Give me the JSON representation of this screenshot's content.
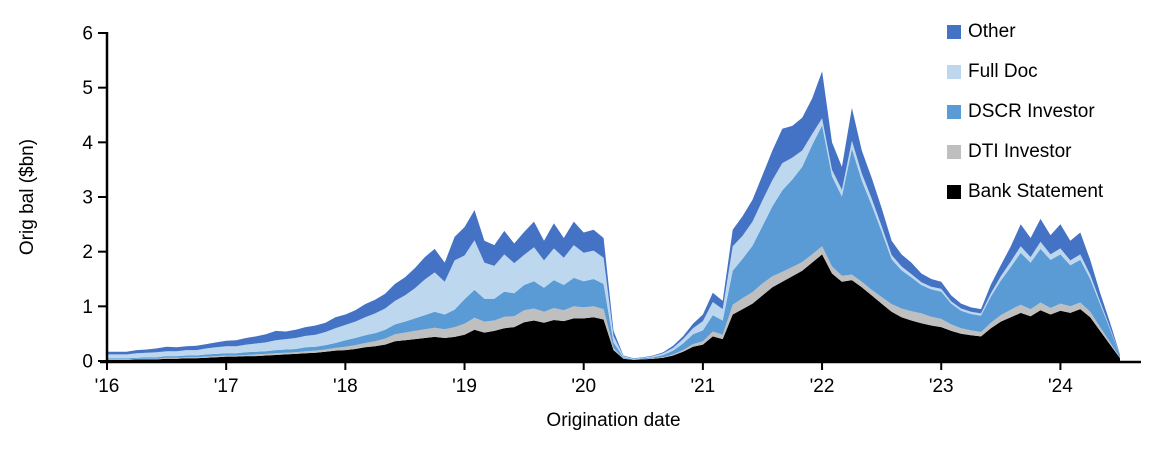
{
  "axes": {
    "y_label": "Orig bal ($bn)",
    "x_label": "Origination date"
  },
  "legend": {
    "items": [
      {
        "label": "Other",
        "color": "#4472C4"
      },
      {
        "label": "Full Doc",
        "color": "#BDD7EE"
      },
      {
        "label": "DSCR Investor",
        "color": "#5B9BD5"
      },
      {
        "label": "DTI Investor",
        "color": "#BFBFBF"
      },
      {
        "label": "Bank Statement",
        "color": "#000000"
      }
    ]
  },
  "chart_data": {
    "type": "area",
    "stacked": true,
    "title": "",
    "xlabel": "Origination date",
    "ylabel": "Orig bal ($bn)",
    "ylim": [
      0,
      6
    ],
    "y_ticks": [
      0,
      1,
      2,
      3,
      4,
      5,
      6
    ],
    "x_unit": "month",
    "x_start": "2016-01",
    "x_end": "2024-07",
    "x_tick_labels": [
      "'16",
      "'17",
      "'18",
      "'19",
      "'20",
      "'21",
      "'22",
      "'23",
      "'24"
    ],
    "x_tick_indices": [
      0,
      12,
      24,
      36,
      48,
      60,
      72,
      84,
      96
    ],
    "grid": false,
    "legend_position": "top-right",
    "series": [
      {
        "name": "Bank Statement",
        "color": "#000000",
        "values": [
          0.02,
          0.02,
          0.02,
          0.03,
          0.03,
          0.03,
          0.04,
          0.04,
          0.05,
          0.05,
          0.06,
          0.07,
          0.08,
          0.08,
          0.09,
          0.09,
          0.1,
          0.11,
          0.12,
          0.13,
          0.14,
          0.15,
          0.17,
          0.19,
          0.2,
          0.22,
          0.25,
          0.27,
          0.3,
          0.36,
          0.38,
          0.4,
          0.42,
          0.44,
          0.42,
          0.44,
          0.48,
          0.57,
          0.52,
          0.55,
          0.6,
          0.62,
          0.71,
          0.74,
          0.7,
          0.75,
          0.73,
          0.78,
          0.78,
          0.8,
          0.76,
          0.2,
          0.04,
          0.02,
          0.03,
          0.04,
          0.06,
          0.1,
          0.17,
          0.26,
          0.3,
          0.45,
          0.4,
          0.85,
          0.95,
          1.05,
          1.2,
          1.35,
          1.45,
          1.55,
          1.65,
          1.8,
          1.95,
          1.6,
          1.45,
          1.48,
          1.35,
          1.2,
          1.05,
          0.9,
          0.8,
          0.74,
          0.69,
          0.65,
          0.62,
          0.55,
          0.5,
          0.47,
          0.45,
          0.6,
          0.72,
          0.8,
          0.88,
          0.82,
          0.93,
          0.85,
          0.92,
          0.88,
          0.95,
          0.8,
          0.55,
          0.3,
          0.05
        ]
      },
      {
        "name": "DTI Investor",
        "color": "#BFBFBF",
        "values": [
          0.01,
          0.01,
          0.01,
          0.01,
          0.01,
          0.01,
          0.02,
          0.02,
          0.02,
          0.02,
          0.02,
          0.02,
          0.02,
          0.02,
          0.02,
          0.03,
          0.03,
          0.03,
          0.03,
          0.03,
          0.04,
          0.04,
          0.04,
          0.05,
          0.06,
          0.07,
          0.08,
          0.09,
          0.11,
          0.13,
          0.14,
          0.15,
          0.16,
          0.17,
          0.16,
          0.18,
          0.2,
          0.22,
          0.2,
          0.19,
          0.21,
          0.2,
          0.22,
          0.22,
          0.2,
          0.22,
          0.2,
          0.22,
          0.2,
          0.2,
          0.19,
          0.04,
          0.01,
          0.0,
          0.0,
          0.01,
          0.01,
          0.02,
          0.03,
          0.05,
          0.06,
          0.09,
          0.08,
          0.18,
          0.2,
          0.21,
          0.22,
          0.2,
          0.18,
          0.17,
          0.16,
          0.15,
          0.15,
          0.13,
          0.11,
          0.1,
          0.1,
          0.1,
          0.12,
          0.14,
          0.16,
          0.17,
          0.18,
          0.16,
          0.15,
          0.12,
          0.1,
          0.09,
          0.08,
          0.1,
          0.12,
          0.14,
          0.15,
          0.13,
          0.14,
          0.12,
          0.13,
          0.12,
          0.12,
          0.1,
          0.07,
          0.04,
          0.01
        ]
      },
      {
        "name": "DSCR Investor",
        "color": "#5B9BD5",
        "values": [
          0.02,
          0.02,
          0.02,
          0.02,
          0.03,
          0.03,
          0.03,
          0.03,
          0.03,
          0.03,
          0.04,
          0.04,
          0.04,
          0.04,
          0.05,
          0.05,
          0.05,
          0.06,
          0.06,
          0.06,
          0.07,
          0.07,
          0.08,
          0.09,
          0.12,
          0.13,
          0.14,
          0.15,
          0.16,
          0.18,
          0.2,
          0.23,
          0.26,
          0.29,
          0.27,
          0.32,
          0.45,
          0.51,
          0.42,
          0.4,
          0.46,
          0.42,
          0.46,
          0.5,
          0.44,
          0.51,
          0.46,
          0.52,
          0.48,
          0.5,
          0.46,
          0.1,
          0.02,
          0.01,
          0.02,
          0.02,
          0.04,
          0.07,
          0.12,
          0.18,
          0.2,
          0.3,
          0.26,
          0.62,
          0.72,
          0.85,
          1.05,
          1.28,
          1.49,
          1.6,
          1.74,
          2.0,
          2.21,
          1.65,
          1.45,
          2.3,
          1.85,
          1.55,
          1.2,
          0.82,
          0.7,
          0.62,
          0.52,
          0.5,
          0.5,
          0.38,
          0.32,
          0.3,
          0.3,
          0.48,
          0.63,
          0.78,
          0.95,
          0.85,
          0.98,
          0.88,
          0.9,
          0.75,
          0.78,
          0.6,
          0.42,
          0.24,
          0.04
        ]
      },
      {
        "name": "Full Doc",
        "color": "#BDD7EE",
        "values": [
          0.07,
          0.07,
          0.07,
          0.08,
          0.08,
          0.09,
          0.09,
          0.09,
          0.1,
          0.1,
          0.11,
          0.12,
          0.13,
          0.13,
          0.14,
          0.15,
          0.16,
          0.18,
          0.19,
          0.2,
          0.21,
          0.22,
          0.24,
          0.27,
          0.28,
          0.3,
          0.33,
          0.36,
          0.39,
          0.43,
          0.48,
          0.55,
          0.65,
          0.72,
          0.6,
          0.9,
          0.8,
          0.91,
          0.66,
          0.6,
          0.68,
          0.55,
          0.55,
          0.62,
          0.5,
          0.58,
          0.5,
          0.6,
          0.52,
          0.52,
          0.48,
          0.12,
          0.02,
          0.01,
          0.01,
          0.02,
          0.03,
          0.05,
          0.08,
          0.11,
          0.17,
          0.24,
          0.21,
          0.45,
          0.42,
          0.44,
          0.47,
          0.48,
          0.5,
          0.4,
          0.3,
          0.2,
          0.13,
          0.12,
          0.12,
          0.15,
          0.13,
          0.12,
          0.1,
          0.08,
          0.07,
          0.06,
          0.05,
          0.05,
          0.05,
          0.04,
          0.04,
          0.04,
          0.04,
          0.06,
          0.08,
          0.1,
          0.12,
          0.1,
          0.13,
          0.1,
          0.11,
          0.09,
          0.1,
          0.08,
          0.05,
          0.03,
          0.01
        ]
      },
      {
        "name": "Other",
        "color": "#4472C4",
        "values": [
          0.05,
          0.05,
          0.05,
          0.06,
          0.06,
          0.07,
          0.08,
          0.07,
          0.07,
          0.08,
          0.08,
          0.09,
          0.1,
          0.11,
          0.12,
          0.13,
          0.15,
          0.17,
          0.14,
          0.15,
          0.16,
          0.17,
          0.17,
          0.2,
          0.19,
          0.21,
          0.24,
          0.25,
          0.27,
          0.31,
          0.33,
          0.37,
          0.41,
          0.43,
          0.35,
          0.43,
          0.52,
          0.55,
          0.4,
          0.38,
          0.43,
          0.36,
          0.42,
          0.47,
          0.36,
          0.46,
          0.36,
          0.43,
          0.37,
          0.38,
          0.36,
          0.09,
          0.01,
          0.01,
          0.01,
          0.01,
          0.02,
          0.04,
          0.05,
          0.08,
          0.12,
          0.17,
          0.15,
          0.3,
          0.36,
          0.4,
          0.46,
          0.54,
          0.63,
          0.58,
          0.6,
          0.65,
          0.86,
          0.5,
          0.42,
          0.6,
          0.42,
          0.38,
          0.33,
          0.26,
          0.22,
          0.21,
          0.16,
          0.14,
          0.13,
          0.11,
          0.09,
          0.08,
          0.08,
          0.16,
          0.2,
          0.28,
          0.4,
          0.35,
          0.42,
          0.35,
          0.44,
          0.36,
          0.4,
          0.27,
          0.16,
          0.09,
          0.01
        ]
      }
    ]
  }
}
